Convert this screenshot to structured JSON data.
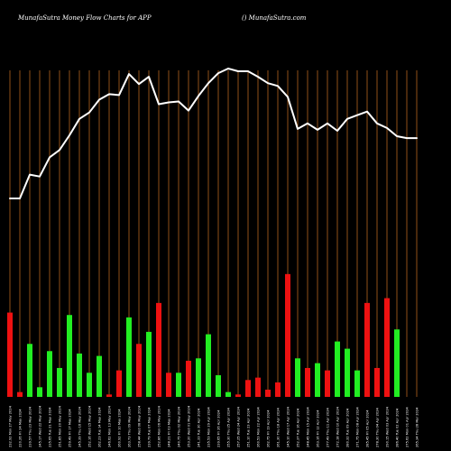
{
  "header": {
    "left_title": "MunafaSutra  Money Flow  Charts for APP",
    "right_title": "() MunafaSutra.com"
  },
  "colors": {
    "background": "#000000",
    "grid": "#b5651d",
    "up": "#22ee22",
    "down": "#ee1111",
    "line": "#ffffff",
    "text": "#ffffff"
  },
  "chart_data": {
    "type": "bar",
    "title": "MunafaSutra  Money Flow  Charts for APP",
    "xlabel": "",
    "ylabel": "",
    "grid": true,
    "categories": [
      "232.92 Mon 27 May 2024",
      "220.26 Fri 24 May 2024",
      "239.57 Thu 23 May 2024",
      "245.17 Wed 22 May 2024",
      "235.65 Tue 21 May 2024",
      "251.85 Mon 20 May 2024",
      "259.49 Fri 17 May 2024",
      "245.39 Thu 16 May 2024",
      "252.16 Wed 15 May 2024",
      "262.23 Tue 14 May 2024",
      "246.62 Mon 13 May 2024",
      "260.92 Fri 10 May 2024",
      "263.73 Thu 09 May 2024",
      "258.44 Wed 08 May 2024",
      "239.79 Tue 07 May 2024",
      "252.86 Mon 06 May 2024",
      "248.21 Fri 03 May 2024",
      "240.75 Thu 02 May 2024",
      "253.20 Wed 01 May 2024",
      "241.33 Tue 30 Apr 2024",
      "235.53 Mon 29 Apr 2024",
      "239.65 Fri 26 Apr 2024",
      "255.30 Thu 25 Apr 2024",
      "257.25 Wed 24 Apr 2024",
      "251.10 Tue 23 Apr 2024",
      "260.53 Mon 22 Apr 2024",
      "262.75 Fri 19 Apr 2024",
      "261.30 Thu 18 Apr 2024",
      "245.10 Wed 17 Apr 2024",
      "252.37 Tue 16 Apr 2024",
      "248.45 Mon 15 Apr 2024",
      "263.16 Fri 12 Apr 2024",
      "277.49 Thu 11 Apr 2024",
      "272.18 Wed 10 Apr 2024",
      "280.32 Tue 09 Apr 2024",
      "271.75 Mon 08 Apr 2024",
      "285.45 Fri 05 Apr 2024",
      "278.30 Thu 04 Apr 2024",
      "290.15 Wed 03 Apr 2024",
      "286.40 Tue 02 Apr 2024",
      "275.62 Mon 01 Apr 2024",
      "265.34 Thu 28 Mar 2024"
    ],
    "series": [
      {
        "type": "bar",
        "values": [
          35,
          2,
          22,
          4,
          19,
          12,
          34,
          18,
          10,
          17,
          1,
          11,
          33,
          22,
          27,
          39,
          10,
          10,
          15,
          16,
          26,
          9,
          2,
          1,
          7,
          8,
          3,
          6,
          51,
          16,
          12,
          14,
          11,
          23,
          20,
          11,
          39,
          12,
          41,
          28,
          0,
          0
        ],
        "directions": [
          "down",
          "down",
          "up",
          "up",
          "up",
          "up",
          "up",
          "up",
          "up",
          "up",
          "down",
          "down",
          "up",
          "down",
          "up",
          "down",
          "down",
          "up",
          "down",
          "up",
          "up",
          "up",
          "up",
          "down",
          "down",
          "down",
          "down",
          "down",
          "down",
          "up",
          "down",
          "up",
          "down",
          "up",
          "up",
          "up",
          "down",
          "down",
          "down",
          "up",
          "up",
          "up"
        ]
      },
      {
        "type": "line",
        "values": [
          220,
          220,
          246,
          244,
          265,
          273,
          289,
          307,
          314,
          328,
          334,
          333,
          356,
          345,
          353,
          323,
          325,
          326,
          316,
          332,
          346,
          357,
          362,
          359,
          359,
          353,
          346,
          343,
          331,
          296,
          302,
          295,
          302,
          294,
          307,
          311,
          315,
          302,
          297,
          288,
          286,
          286
        ]
      }
    ]
  }
}
